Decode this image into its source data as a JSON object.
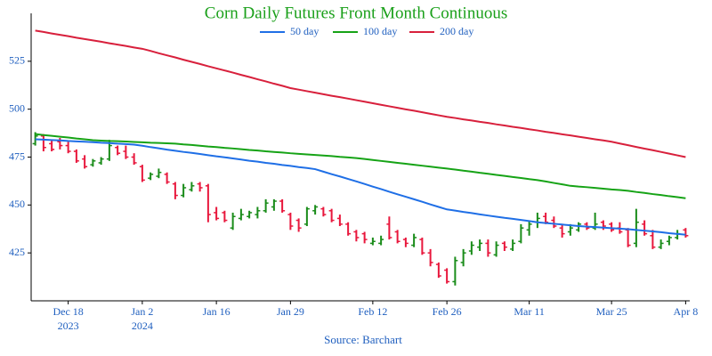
{
  "chart_data": {
    "type": "ohlc",
    "title": "Corn Daily Futures Front Month Continuous",
    "source": "Source: Barchart",
    "x": [
      "2023-12-12",
      "2023-12-13",
      "2023-12-14",
      "2023-12-15",
      "2023-12-18",
      "2023-12-19",
      "2023-12-20",
      "2023-12-21",
      "2023-12-22",
      "2023-12-26",
      "2023-12-27",
      "2023-12-28",
      "2023-12-29",
      "2024-01-02",
      "2024-01-03",
      "2024-01-04",
      "2024-01-05",
      "2024-01-08",
      "2024-01-09",
      "2024-01-10",
      "2024-01-11",
      "2024-01-12",
      "2024-01-16",
      "2024-01-17",
      "2024-01-18",
      "2024-01-19",
      "2024-01-22",
      "2024-01-23",
      "2024-01-24",
      "2024-01-25",
      "2024-01-26",
      "2024-01-29",
      "2024-01-30",
      "2024-01-31",
      "2024-02-01",
      "2024-02-02",
      "2024-02-05",
      "2024-02-06",
      "2024-02-07",
      "2024-02-08",
      "2024-02-09",
      "2024-02-12",
      "2024-02-13",
      "2024-02-14",
      "2024-02-15",
      "2024-02-16",
      "2024-02-20",
      "2024-02-21",
      "2024-02-22",
      "2024-02-23",
      "2024-02-26",
      "2024-02-27",
      "2024-02-28",
      "2024-02-29",
      "2024-03-01",
      "2024-03-04",
      "2024-03-05",
      "2024-03-06",
      "2024-03-07",
      "2024-03-08",
      "2024-03-11",
      "2024-03-12",
      "2024-03-13",
      "2024-03-14",
      "2024-03-15",
      "2024-03-18",
      "2024-03-19",
      "2024-03-20",
      "2024-03-21",
      "2024-03-22",
      "2024-03-25",
      "2024-03-26",
      "2024-03-27",
      "2024-03-28",
      "2024-04-01",
      "2024-04-02",
      "2024-04-03",
      "2024-04-04",
      "2024-04-05",
      "2024-04-08"
    ],
    "ohlc": {
      "up_color": "#1a8c1a",
      "down_color": "#e8173c",
      "open": [
        482,
        486,
        482,
        483,
        481,
        478,
        474,
        471,
        472,
        474,
        480,
        478,
        475,
        470,
        464,
        465,
        466,
        461,
        455,
        458,
        461,
        460,
        446,
        446,
        438,
        443,
        444,
        445,
        447,
        449,
        452,
        445,
        442,
        440,
        447,
        448,
        447,
        443,
        440,
        436,
        435,
        430,
        430,
        440,
        436,
        432,
        429,
        432,
        425,
        419,
        416,
        410,
        420,
        426,
        428,
        430,
        424,
        430,
        427,
        431,
        437,
        441,
        444,
        442,
        438,
        436,
        437,
        440,
        438,
        441,
        440,
        438,
        437,
        430,
        440,
        434,
        428,
        431,
        433,
        437
      ],
      "high": [
        488,
        487,
        484,
        485,
        483,
        479,
        476,
        474,
        475,
        484,
        481,
        481,
        477,
        471,
        467,
        469,
        467,
        462,
        461,
        462,
        462,
        461,
        449,
        447,
        446,
        448,
        447,
        449,
        453,
        453,
        453,
        446,
        443,
        449,
        450,
        449,
        448,
        445,
        441,
        437,
        436,
        433,
        434,
        444,
        437,
        433,
        435,
        433,
        427,
        420,
        417,
        423,
        427,
        431,
        432,
        432,
        431,
        431,
        432,
        440,
        442,
        446,
        446,
        444,
        440,
        440,
        441,
        441,
        446,
        442,
        441,
        441,
        438,
        448,
        442,
        437,
        432,
        434,
        437,
        438
      ],
      "low": [
        481,
        478,
        478,
        479,
        477,
        472,
        469,
        470,
        471,
        473,
        476,
        474,
        471,
        462,
        463,
        464,
        461,
        453,
        454,
        457,
        457,
        441,
        442,
        441,
        437,
        442,
        443,
        443,
        446,
        447,
        446,
        437,
        436,
        439,
        445,
        444,
        441,
        439,
        434,
        431,
        430,
        429,
        429,
        432,
        430,
        428,
        428,
        424,
        418,
        412,
        409,
        408,
        418,
        424,
        426,
        423,
        423,
        426,
        426,
        430,
        434,
        438,
        440,
        438,
        433,
        434,
        436,
        437,
        437,
        437,
        436,
        435,
        428,
        428,
        434,
        427,
        427,
        429,
        432,
        433
      ],
      "close": [
        486,
        480,
        479,
        481,
        478,
        473,
        470,
        473,
        474,
        481,
        477,
        475,
        472,
        463,
        466,
        467,
        462,
        455,
        459,
        460,
        459,
        445,
        443,
        442,
        444,
        445,
        446,
        447,
        451,
        452,
        447,
        439,
        438,
        448,
        449,
        445,
        442,
        440,
        435,
        433,
        432,
        431,
        432,
        433,
        431,
        430,
        433,
        425,
        420,
        413,
        410,
        421,
        425,
        429,
        430,
        425,
        429,
        428,
        430,
        438,
        440,
        443,
        441,
        439,
        435,
        438,
        440,
        438,
        440,
        439,
        437,
        436,
        429,
        441,
        435,
        428,
        430,
        433,
        435,
        434
      ]
    },
    "series": [
      {
        "name": "50 day",
        "color": "#1f6fe6",
        "values": [
          484.3,
          484.1,
          483.9,
          483.7,
          483.4,
          483.2,
          483.0,
          482.8,
          482.5,
          482.3,
          482.0,
          481.8,
          481.5,
          480.9,
          480.2,
          479.6,
          478.9,
          478.3,
          477.7,
          477.2,
          476.6,
          476.0,
          475.4,
          474.9,
          474.3,
          473.7,
          473.1,
          472.6,
          472.0,
          471.5,
          470.9,
          470.4,
          469.8,
          469.3,
          468.7,
          467.4,
          466.1,
          464.9,
          463.6,
          462.3,
          461.0,
          459.6,
          458.3,
          456.9,
          455.6,
          454.3,
          453.0,
          451.7,
          450.3,
          449.0,
          447.7,
          447.1,
          446.4,
          445.8,
          445.1,
          444.5,
          443.9,
          443.3,
          442.8,
          442.2,
          441.6,
          441.0,
          440.6,
          440.2,
          439.8,
          439.4,
          439.0,
          438.7,
          438.5,
          438.2,
          437.9,
          437.7,
          437.4,
          437.0,
          436.6,
          436.2,
          435.8,
          435.3,
          434.9,
          434.5
        ]
      },
      {
        "name": "100 day",
        "color": "#16a316",
        "values": [
          487.0,
          486.5,
          486.1,
          485.6,
          485.2,
          484.7,
          484.3,
          483.8,
          483.6,
          483.4,
          483.3,
          483.1,
          482.9,
          482.7,
          482.5,
          482.4,
          482.2,
          482.0,
          481.6,
          481.3,
          480.9,
          480.5,
          480.2,
          479.8,
          479.5,
          479.1,
          478.7,
          478.4,
          478.0,
          477.7,
          477.4,
          477.0,
          476.7,
          476.4,
          476.1,
          475.8,
          475.5,
          475.1,
          474.8,
          474.5,
          474.0,
          473.5,
          473.0,
          472.5,
          472.0,
          471.5,
          471.0,
          470.5,
          470.0,
          469.5,
          469.0,
          468.5,
          467.9,
          467.4,
          466.8,
          466.3,
          465.7,
          465.2,
          464.6,
          464.1,
          463.5,
          463.0,
          462.3,
          461.5,
          460.8,
          460.0,
          459.6,
          459.3,
          458.9,
          458.5,
          458.1,
          457.8,
          457.4,
          456.8,
          456.3,
          455.7,
          455.2,
          454.6,
          454.1,
          453.5
        ]
      },
      {
        "name": "200 day",
        "color": "#d8203c",
        "values": [
          541.0,
          540.3,
          539.5,
          538.8,
          538.1,
          537.3,
          536.6,
          535.9,
          535.2,
          534.4,
          533.7,
          533.0,
          532.2,
          531.5,
          530.4,
          529.2,
          528.1,
          527.0,
          525.8,
          524.7,
          523.6,
          522.4,
          521.3,
          520.2,
          519.1,
          517.9,
          516.8,
          515.6,
          514.5,
          513.3,
          512.2,
          511.0,
          510.2,
          509.4,
          508.6,
          507.8,
          507.0,
          506.3,
          505.5,
          504.7,
          503.9,
          503.1,
          502.3,
          501.5,
          500.7,
          499.9,
          499.2,
          498.4,
          497.6,
          496.8,
          496.0,
          495.4,
          494.7,
          494.1,
          493.4,
          492.8,
          492.1,
          491.5,
          490.8,
          490.2,
          489.5,
          488.9,
          488.2,
          487.6,
          486.9,
          486.3,
          485.6,
          485.0,
          484.3,
          483.7,
          483.0,
          482.1,
          481.2,
          480.3,
          479.4,
          478.6,
          477.7,
          476.8,
          475.9,
          475.0
        ]
      }
    ],
    "ylim": [
      400,
      550
    ],
    "yticks": [
      425,
      450,
      475,
      500,
      525
    ],
    "xticks": [
      {
        "value": "2023-12-18",
        "label": "Dec 18",
        "year": "2023"
      },
      {
        "value": "2024-01-02",
        "label": "Jan 2",
        "year": "2024"
      },
      {
        "value": "2024-01-16",
        "label": "Jan 16"
      },
      {
        "value": "2024-01-29",
        "label": "Jan 29"
      },
      {
        "value": "2024-02-12",
        "label": "Feb 12"
      },
      {
        "value": "2024-02-26",
        "label": "Feb 26"
      },
      {
        "value": "2024-03-11",
        "label": "Mar 11"
      },
      {
        "value": "2024-03-25",
        "label": "Mar 25"
      },
      {
        "value": "2024-04-08",
        "label": "Apr 8"
      }
    ],
    "title_color": "#1aa01a",
    "label_color": "#1f5fbf",
    "grid": false,
    "legend": "top"
  }
}
